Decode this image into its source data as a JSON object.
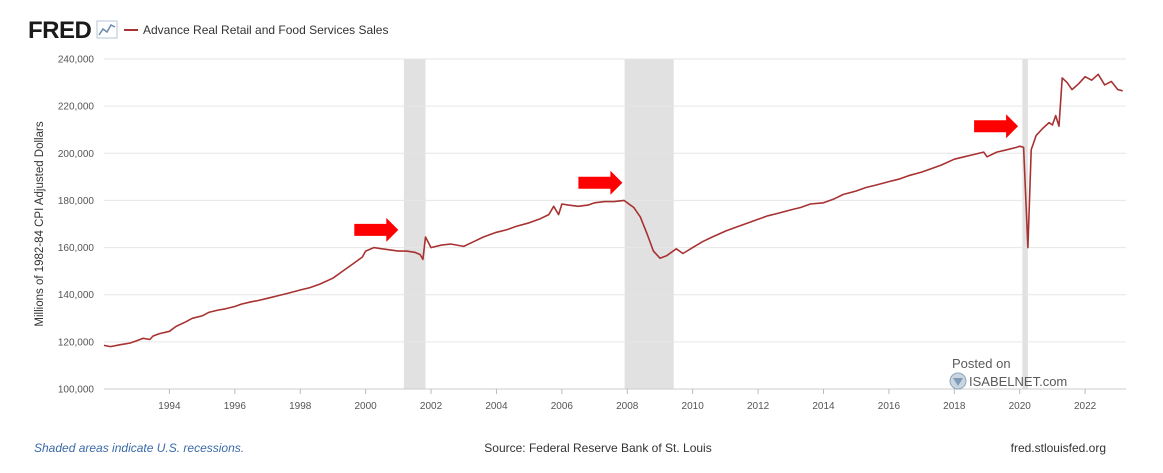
{
  "header": {
    "logo_text": "FRED",
    "legend_label": "Advance Real Retail and Food Services Sales",
    "series_color": "#a83232"
  },
  "footer": {
    "note": "Shaded areas indicate U.S. recessions.",
    "source": "Source: Federal Reserve Bank of St. Louis",
    "site": "fred.stlouisfed.org"
  },
  "watermark": {
    "posted_on": "Posted on",
    "site": "ISABELNET.com"
  },
  "chart_data": {
    "type": "line",
    "title": "",
    "xlabel": "",
    "ylabel": "Millions of 1982-84 CPI Adjusted Dollars",
    "xlim": [
      1992.0,
      2023.25
    ],
    "ylim": [
      100000,
      240000
    ],
    "y_ticks": [
      100000,
      120000,
      140000,
      160000,
      180000,
      200000,
      220000,
      240000
    ],
    "y_tick_labels": [
      "100,000",
      "120,000",
      "140,000",
      "160,000",
      "180,000",
      "200,000",
      "220,000",
      "240,000"
    ],
    "x_ticks": [
      1994,
      1996,
      1998,
      2000,
      2002,
      2004,
      2006,
      2008,
      2010,
      2012,
      2014,
      2016,
      2018,
      2020,
      2022
    ],
    "grid": "horizontal",
    "recessions": [
      [
        2001.17,
        2001.83
      ],
      [
        2007.92,
        2009.42
      ],
      [
        2020.08,
        2020.25
      ]
    ],
    "recession_color": "#e1e1e1",
    "annotation_color": "#ff0000",
    "arrows": [
      {
        "x": 2001.0,
        "y": 167500
      },
      {
        "x": 2007.85,
        "y": 187500
      },
      {
        "x": 2019.95,
        "y": 211500
      }
    ],
    "series": [
      {
        "name": "Advance Real Retail and Food Services Sales",
        "color": "#a83232",
        "x": [
          1992.0,
          1992.2,
          1992.5,
          1992.8,
          1993.0,
          1993.2,
          1993.4,
          1993.5,
          1993.7,
          1994.0,
          1994.2,
          1994.5,
          1994.7,
          1995.0,
          1995.2,
          1995.5,
          1995.7,
          1996.0,
          1996.2,
          1996.5,
          1996.7,
          1997.0,
          1997.3,
          1997.6,
          1998.0,
          1998.3,
          1998.6,
          1999.0,
          1999.3,
          1999.6,
          1999.9,
          2000.0,
          2000.25,
          2000.5,
          2000.75,
          2001.0,
          2001.25,
          2001.5,
          2001.67,
          2001.75,
          2001.83,
          2002.0,
          2002.3,
          2002.6,
          2003.0,
          2003.3,
          2003.6,
          2004.0,
          2004.3,
          2004.6,
          2005.0,
          2005.3,
          2005.6,
          2005.75,
          2005.9,
          2006.0,
          2006.2,
          2006.5,
          2006.8,
          2007.0,
          2007.3,
          2007.6,
          2007.9,
          2008.0,
          2008.2,
          2008.4,
          2008.6,
          2008.8,
          2009.0,
          2009.2,
          2009.5,
          2009.7,
          2010.0,
          2010.3,
          2010.6,
          2011.0,
          2011.3,
          2011.6,
          2012.0,
          2012.3,
          2012.6,
          2013.0,
          2013.3,
          2013.6,
          2014.0,
          2014.3,
          2014.6,
          2015.0,
          2015.3,
          2015.6,
          2016.0,
          2016.3,
          2016.6,
          2017.0,
          2017.3,
          2017.6,
          2018.0,
          2018.3,
          2018.6,
          2018.9,
          2019.0,
          2019.3,
          2019.6,
          2019.9,
          2020.0,
          2020.12,
          2020.25,
          2020.35,
          2020.5,
          2020.7,
          2020.9,
          2021.0,
          2021.1,
          2021.2,
          2021.3,
          2021.45,
          2021.6,
          2021.8,
          2022.0,
          2022.2,
          2022.4,
          2022.6,
          2022.8,
          2023.0,
          2023.15
        ],
        "values": [
          118500,
          118000,
          118800,
          119500,
          120500,
          121500,
          121000,
          122500,
          123500,
          124500,
          126500,
          128500,
          130000,
          131000,
          132500,
          133500,
          134000,
          135000,
          136000,
          137000,
          137500,
          138500,
          139500,
          140500,
          142000,
          143000,
          144500,
          147000,
          150000,
          153000,
          156000,
          158500,
          160000,
          159500,
          159000,
          158500,
          158500,
          158000,
          157000,
          155000,
          164500,
          160000,
          161000,
          161500,
          160500,
          162500,
          164500,
          166500,
          167500,
          169000,
          170500,
          172000,
          174000,
          177500,
          174000,
          178500,
          178000,
          177500,
          178000,
          179000,
          179500,
          179500,
          180000,
          179000,
          177000,
          173000,
          166000,
          158500,
          155500,
          156500,
          159500,
          157500,
          160000,
          162500,
          164500,
          167000,
          168500,
          170000,
          172000,
          173500,
          174500,
          176000,
          177000,
          178500,
          179000,
          180500,
          182500,
          184000,
          185500,
          186500,
          188000,
          189000,
          190500,
          192000,
          193500,
          195000,
          197500,
          198500,
          199500,
          200500,
          198500,
          200500,
          201500,
          202500,
          203000,
          202500,
          160000,
          201500,
          207500,
          210500,
          213000,
          212000,
          216000,
          211500,
          232000,
          230000,
          227000,
          229500,
          232500,
          231000,
          233500,
          229000,
          230500,
          227000,
          226500
        ]
      }
    ]
  }
}
